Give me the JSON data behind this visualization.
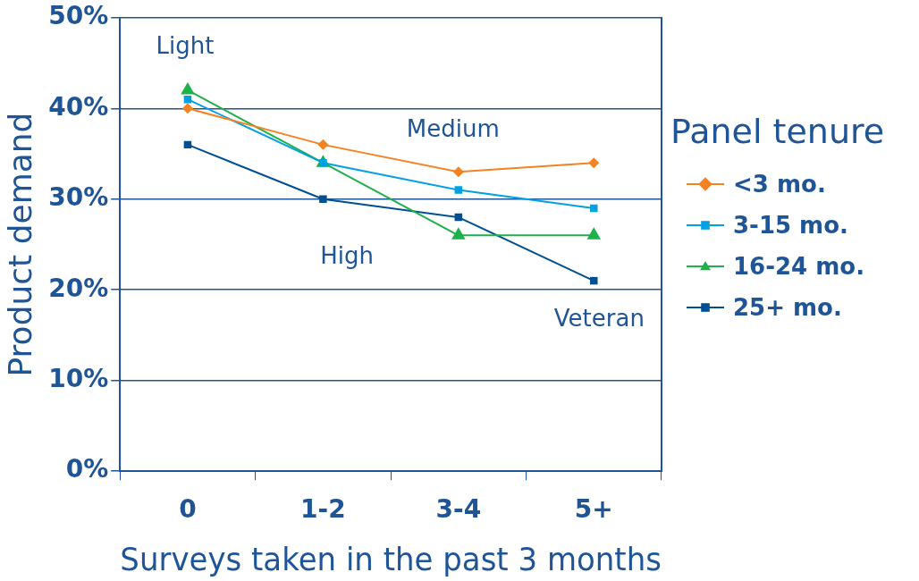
{
  "chart_data": {
    "type": "line",
    "xlabel": "Surveys taken in the past 3 months",
    "ylabel": "Product demand",
    "legend_title": "Panel tenure",
    "categories": [
      "0",
      "1-2",
      "3-4",
      "5+"
    ],
    "series": [
      {
        "name": "<3 mo.",
        "color": "#f58220",
        "marker": "diamond",
        "values": [
          40,
          36,
          33,
          34
        ]
      },
      {
        "name": "3-15 mo.",
        "color": "#00a0e3",
        "marker": "square",
        "values": [
          41,
          34,
          31,
          29
        ]
      },
      {
        "name": "16-24 mo.",
        "color": "#1db04b",
        "marker": "triangle",
        "values": [
          42,
          34,
          26,
          26
        ]
      },
      {
        "name": "25+ mo.",
        "color": "#004f93",
        "marker": "square",
        "values": [
          36,
          30,
          28,
          21
        ]
      }
    ],
    "ylim": [
      0,
      50
    ],
    "yticks": [
      {
        "value": 0,
        "label": "0%"
      },
      {
        "value": 10,
        "label": "10%"
      },
      {
        "value": 20,
        "label": "20%"
      },
      {
        "value": 30,
        "label": "30%"
      },
      {
        "value": 40,
        "label": "40%"
      },
      {
        "value": 50,
        "label": "50%"
      }
    ],
    "grid": "y",
    "legend": "right",
    "line_style": "solid",
    "annotations": [
      "Light",
      "Medium",
      "High",
      "Veteran"
    ]
  }
}
